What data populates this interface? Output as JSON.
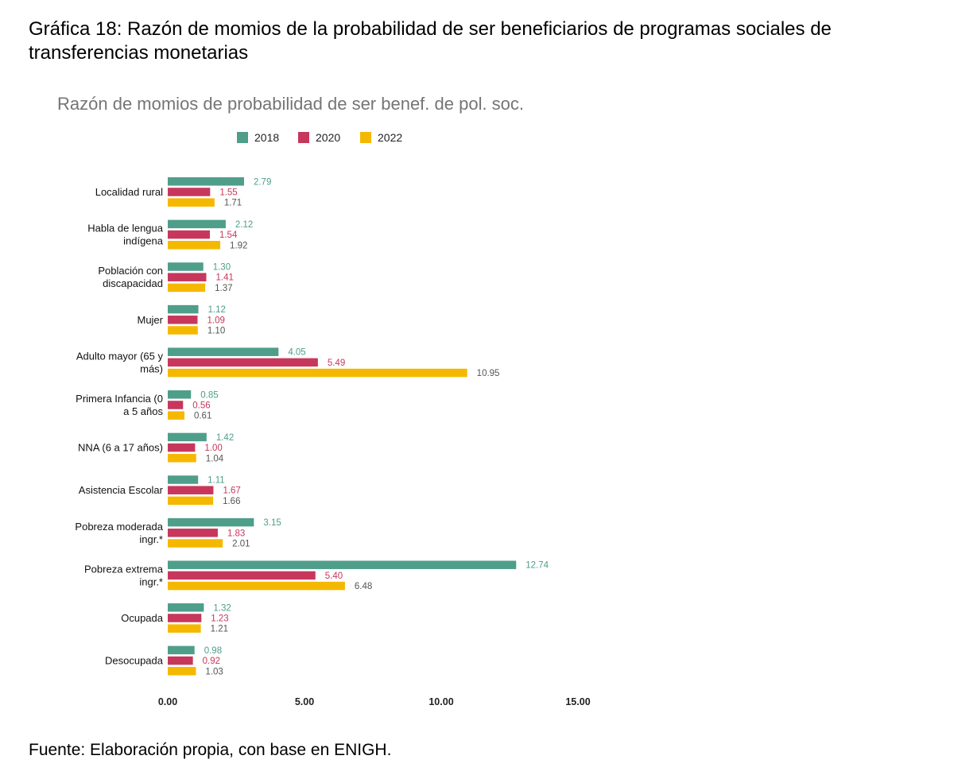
{
  "document": {
    "title": "Gráfica 18: Razón de momios de la probabilidad de ser beneficiarios de programas sociales de transferencias monetarias",
    "source": "Fuente: Elaboración propia, con base en ENIGH."
  },
  "chart_data": {
    "type": "bar",
    "orientation": "horizontal",
    "title": "Razón de momios de probabilidad de ser benef. de pol. soc.",
    "xlabel": "",
    "ylabel": "",
    "xlim": [
      0,
      15
    ],
    "x_ticks": [
      "0.00",
      "5.00",
      "10.00",
      "15.00"
    ],
    "x_tick_values": [
      0,
      5,
      10,
      15
    ],
    "grid": false,
    "legend_position": "top",
    "categories": [
      [
        "Localidad rural"
      ],
      [
        "Habla de lengua",
        "indígena"
      ],
      [
        "Población con",
        "discapacidad"
      ],
      [
        "Mujer"
      ],
      [
        "Adulto mayor (65 y",
        "más)"
      ],
      [
        "Primera Infancia (0",
        "a 5 años"
      ],
      [
        "NNA (6 a 17 años)"
      ],
      [
        "Asistencia Escolar"
      ],
      [
        "Pobreza moderada",
        "ingr.*"
      ],
      [
        "Pobreza extrema",
        "ingr.*"
      ],
      [
        "Ocupada"
      ],
      [
        "Desocupada"
      ]
    ],
    "series": [
      {
        "name": "2018",
        "color": "#4e9e8a",
        "label_color": "#4e9e8a",
        "values": [
          2.79,
          2.12,
          1.3,
          1.12,
          4.05,
          0.85,
          1.42,
          1.11,
          3.15,
          12.74,
          1.32,
          0.98
        ],
        "labels": [
          "2.79",
          "2.12",
          "1.30",
          "1.12",
          "4.05",
          "0.85",
          "1.42",
          "1.11",
          "3.15",
          "12.74",
          "1.32",
          "0.98"
        ]
      },
      {
        "name": "2020",
        "color": "#c7375c",
        "label_color": "#c7375c",
        "values": [
          1.55,
          1.54,
          1.41,
          1.09,
          5.49,
          0.56,
          1.0,
          1.67,
          1.83,
          5.4,
          1.23,
          0.92
        ],
        "labels": [
          "1.55",
          "1.54",
          "1.41",
          "1.09",
          "5.49",
          "0.56",
          "1.00",
          "1.67",
          "1.83",
          "5.40",
          "1.23",
          "0.92"
        ]
      },
      {
        "name": "2022",
        "color": "#f5b800",
        "label_color": "#555555",
        "values": [
          1.71,
          1.92,
          1.37,
          1.1,
          10.95,
          0.61,
          1.04,
          1.66,
          2.01,
          6.48,
          1.21,
          1.03
        ],
        "labels": [
          "1.71",
          "1.92",
          "1.37",
          "1.10",
          "10.95",
          "0.61",
          "1.04",
          "1.66",
          "2.01",
          "6.48",
          "1.21",
          "1.03"
        ]
      }
    ]
  }
}
